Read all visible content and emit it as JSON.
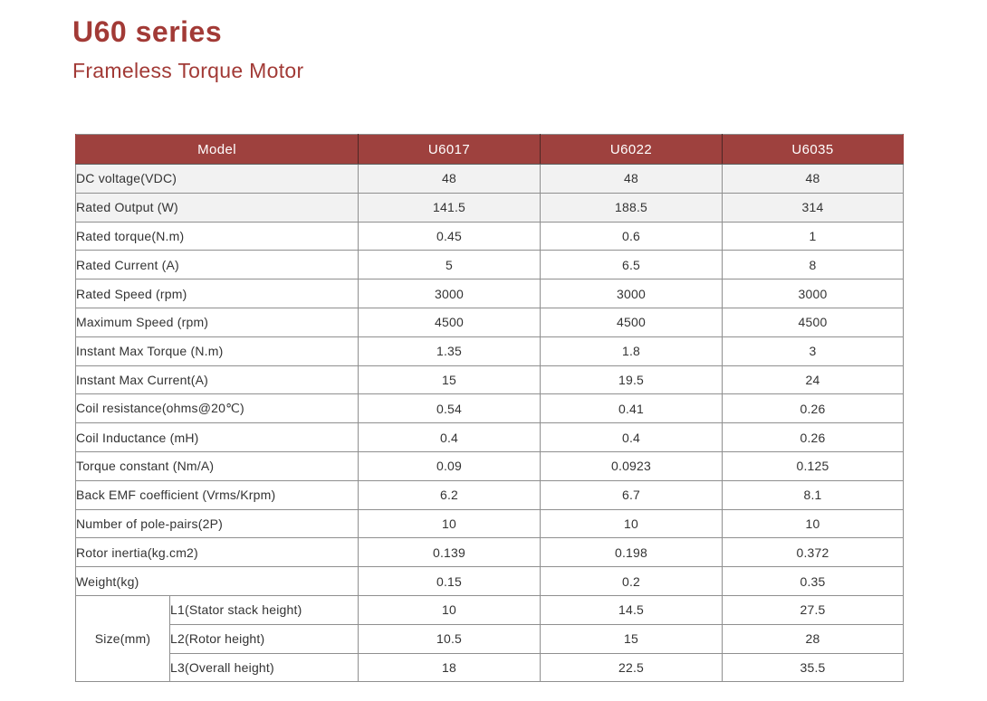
{
  "page": {
    "title": "U60 series",
    "subtitle": "Frameless Torque Motor"
  },
  "colors": {
    "brand_red": "#A23A36",
    "table_header_bg": "#9E413E",
    "table_header_text": "#FFFFFF",
    "shaded_row_bg": "#F2F2F2",
    "border_gray": "#8F8F8F",
    "body_text": "#333333"
  },
  "table": {
    "header": [
      "Model",
      "U6017",
      "U6022",
      "U6035"
    ],
    "rows": [
      {
        "label": "DC voltage(VDC)",
        "values": [
          "48",
          "48",
          "48"
        ],
        "shaded": true
      },
      {
        "label": "Rated Output (W)",
        "values": [
          "141.5",
          "188.5",
          "314"
        ],
        "shaded": true
      },
      {
        "label": "Rated torque(N.m)",
        "values": [
          "0.45",
          "0.6",
          "1"
        ],
        "shaded": false
      },
      {
        "label": "Rated Current (A)",
        "values": [
          "5",
          "6.5",
          "8"
        ],
        "shaded": false
      },
      {
        "label": "Rated Speed (rpm)",
        "values": [
          "3000",
          "3000",
          "3000"
        ],
        "shaded": false
      },
      {
        "label": "Maximum Speed (rpm)",
        "values": [
          "4500",
          "4500",
          "4500"
        ],
        "shaded": false
      },
      {
        "label": "Instant Max Torque (N.m)",
        "values": [
          "1.35",
          "1.8",
          "3"
        ],
        "shaded": false
      },
      {
        "label": "Instant Max Current(A)",
        "values": [
          "15",
          "19.5",
          "24"
        ],
        "shaded": false
      },
      {
        "label": "Coil resistance(ohms@20℃)",
        "values": [
          "0.54",
          "0.41",
          "0.26"
        ],
        "shaded": false
      },
      {
        "label": "Coil Inductance (mH)",
        "values": [
          "0.4",
          "0.4",
          "0.26"
        ],
        "shaded": false
      },
      {
        "label": "Torque constant (Nm/A)",
        "values": [
          "0.09",
          "0.0923",
          "0.125"
        ],
        "shaded": false
      },
      {
        "label": "Back EMF coefficient (Vrms/Krpm)",
        "values": [
          "6.2",
          "6.7",
          "8.1"
        ],
        "shaded": false
      },
      {
        "label": "Number of pole-pairs(2P)",
        "values": [
          "10",
          "10",
          "10"
        ],
        "shaded": false
      },
      {
        "label": "Rotor inertia(kg.cm2)",
        "values": [
          "0.139",
          "0.198",
          "0.372"
        ],
        "shaded": false
      },
      {
        "label": "Weight(kg)",
        "values": [
          "0.15",
          "0.2",
          "0.35"
        ],
        "shaded": false
      }
    ],
    "size_group": {
      "label": "Size(mm)",
      "rows": [
        {
          "label": "L1(Stator stack height)",
          "values": [
            "10",
            "14.5",
            "27.5"
          ]
        },
        {
          "label": "L2(Rotor height)",
          "values": [
            "10.5",
            "15",
            "28"
          ]
        },
        {
          "label": "L3(Overall height)",
          "values": [
            "18",
            "22.5",
            "35.5"
          ]
        }
      ]
    }
  }
}
